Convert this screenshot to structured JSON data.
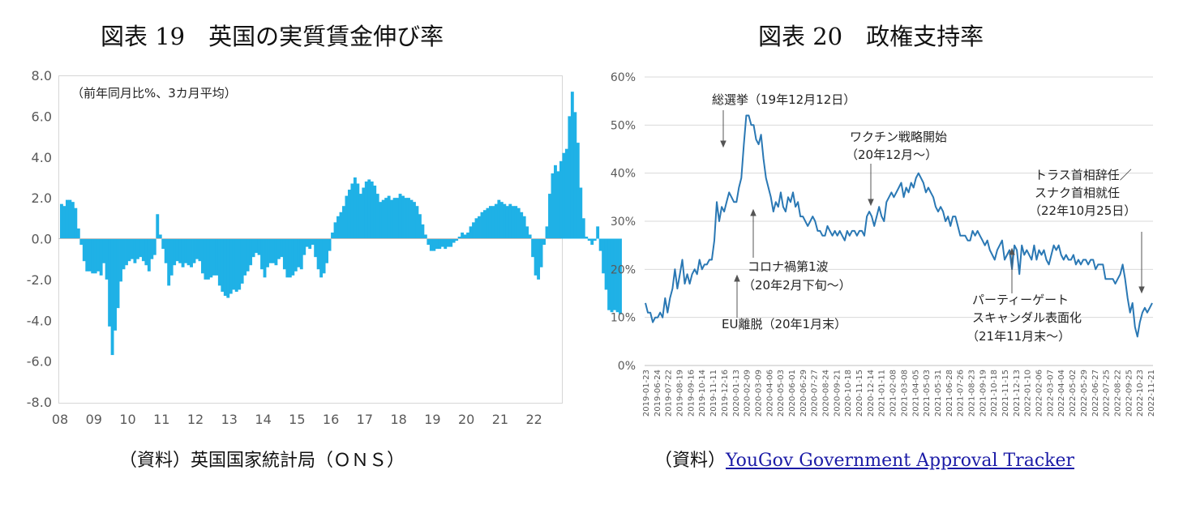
{
  "left_figure": {
    "title": "図表 19　英国の実質賃金伸び率",
    "note": "（前年同月比%、3カ月平均）",
    "source_label": "（資料）英国国家統計局（ＯＮＳ）"
  },
  "right_figure": {
    "title": "図表 20　政権支持率",
    "source_prefix": "（資料）",
    "source_link": "YouGov Government Approval Tracker"
  },
  "colors": {
    "bar": "#1fb1e6",
    "line": "#2a78b4",
    "grid": "#d9d9d9",
    "axis_text": "#595959",
    "link": "#1a1aa6"
  },
  "chart_data": [
    {
      "type": "bar",
      "x_tick_labels": [
        "08",
        "09",
        "10",
        "11",
        "12",
        "13",
        "14",
        "15",
        "16",
        "17",
        "18",
        "19",
        "20",
        "21",
        "22"
      ],
      "y_tick_labels": [
        "8.0",
        "6.0",
        "4.0",
        "2.0",
        "0.0",
        "-2.0",
        "-4.0",
        "-6.0",
        "-8.0"
      ],
      "ylim": [
        -8,
        8
      ],
      "x_start": 2008.0,
      "x_step_years": 0.08333,
      "grid": false,
      "values": [
        1.7,
        1.6,
        1.9,
        1.9,
        1.8,
        1.5,
        0.5,
        -0.3,
        -1.1,
        -1.6,
        -1.6,
        -1.7,
        -1.7,
        -1.6,
        -1.8,
        -1.2,
        -2.0,
        -4.3,
        -5.7,
        -4.5,
        -3.4,
        -2.1,
        -1.5,
        -1.3,
        -1.1,
        -1.0,
        -1.2,
        -1.0,
        -0.9,
        -1.1,
        -1.3,
        -1.6,
        -1.0,
        -0.8,
        1.2,
        0.2,
        -0.5,
        -1.2,
        -2.3,
        -1.8,
        -1.3,
        -1.1,
        -1.2,
        -1.4,
        -1.2,
        -1.3,
        -1.4,
        -1.2,
        -1.0,
        -1.1,
        -1.7,
        -2.0,
        -2.0,
        -1.9,
        -1.8,
        -1.8,
        -2.3,
        -2.6,
        -2.8,
        -2.9,
        -2.7,
        -2.5,
        -2.6,
        -2.5,
        -2.2,
        -1.8,
        -1.6,
        -1.3,
        -0.9,
        -0.7,
        -0.8,
        -1.5,
        -1.9,
        -1.4,
        -1.2,
        -1.2,
        -1.3,
        -1.0,
        -0.9,
        -1.5,
        -1.9,
        -1.9,
        -1.8,
        -1.6,
        -1.4,
        -1.5,
        -0.8,
        -0.4,
        -0.5,
        -0.3,
        -0.9,
        -1.5,
        -1.9,
        -1.7,
        -1.2,
        -0.6,
        0.3,
        0.8,
        1.1,
        1.3,
        1.6,
        2.1,
        2.4,
        2.7,
        3.0,
        2.7,
        2.2,
        2.5,
        2.8,
        2.9,
        2.8,
        2.6,
        2.2,
        1.8,
        1.9,
        2.0,
        2.1,
        1.9,
        2.0,
        2.0,
        2.2,
        2.1,
        2.0,
        2.0,
        1.9,
        1.8,
        1.6,
        1.2,
        0.7,
        0.2,
        -0.3,
        -0.6,
        -0.6,
        -0.5,
        -0.5,
        -0.4,
        -0.5,
        -0.4,
        -0.4,
        -0.2,
        -0.1,
        0.1,
        0.3,
        0.2,
        0.3,
        0.6,
        0.8,
        1.0,
        1.1,
        1.3,
        1.4,
        1.5,
        1.6,
        1.6,
        1.7,
        1.9,
        1.8,
        1.7,
        1.6,
        1.7,
        1.6,
        1.6,
        1.5,
        1.3,
        1.1,
        0.6,
        0.2,
        -0.9,
        -1.8,
        -2.0,
        -1.4,
        -0.3,
        0.6,
        2.2,
        3.2,
        3.6,
        3.3,
        3.8,
        4.2,
        4.4,
        6.0,
        7.2,
        6.2,
        4.7,
        2.5,
        1.0,
        0.1,
        -0.1,
        -0.3,
        -0.1,
        0.6,
        -0.6,
        -1.7,
        -2.5,
        -3.5,
        -3.6,
        -3.5,
        -3.6,
        -3.7
      ]
    },
    {
      "type": "line",
      "x_tick_labels": [
        "2019-01-23",
        "2019-06-24",
        "2019-07-22",
        "2019-08-19",
        "2019-09-16",
        "2019-10-14",
        "2019-11-11",
        "2019-12-16",
        "2020-01-13",
        "2020-02-09",
        "2020-03-09",
        "2020-04-06",
        "2020-05-03",
        "2020-06-01",
        "2020-06-29",
        "2020-07-27",
        "2020-08-24",
        "2020-09-21",
        "2020-10-18",
        "2020-11-15",
        "2020-12-14",
        "2021-01-11",
        "2021-02-08",
        "2021-03-08",
        "2021-04-05",
        "2021-05-03",
        "2021-05-31",
        "2021-06-28",
        "2021-07-26",
        "2021-08-23",
        "2021-09-19",
        "2021-10-18",
        "2021-11-15",
        "2021-12-13",
        "2022-01-10",
        "2022-02-06",
        "2022-03-07",
        "2022-04-04",
        "2022-05-02",
        "2022-05-29",
        "2022-06-27",
        "2022-07-25",
        "2022-08-22",
        "2022-09-25",
        "2022-10-23",
        "2022-11-21"
      ],
      "y_tick_labels": [
        "60%",
        "50%",
        "40%",
        "30%",
        "20%",
        "10%",
        "0%"
      ],
      "ylim": [
        0,
        60
      ],
      "grid": true,
      "series": [
        {
          "values": [
            13,
            11,
            11,
            9,
            10,
            10,
            11,
            10,
            14,
            11,
            14,
            16,
            20,
            16,
            19,
            22,
            17,
            19,
            17,
            19,
            20,
            19,
            22,
            20,
            21,
            21,
            22,
            22,
            26,
            34,
            30,
            33,
            32,
            34,
            36,
            35,
            34,
            34,
            37,
            39,
            46,
            52,
            52,
            50,
            50,
            47,
            46,
            48,
            43,
            39,
            37,
            35,
            32,
            34,
            33,
            36,
            33,
            32,
            35,
            34,
            36,
            33,
            34,
            31,
            31,
            30,
            29,
            30,
            31,
            30,
            28,
            28,
            27,
            27,
            29,
            28,
            27,
            28,
            27,
            28,
            27,
            26,
            28,
            27,
            28,
            28,
            27,
            28,
            28,
            27,
            31,
            32,
            31,
            29,
            31,
            33,
            31,
            30,
            34,
            35,
            36,
            35,
            36,
            37,
            38,
            35,
            37,
            36,
            38,
            37,
            39,
            40,
            39,
            38,
            36,
            37,
            36,
            35,
            33,
            32,
            33,
            32,
            30,
            31,
            29,
            31,
            31,
            29,
            27,
            27,
            27,
            26,
            26,
            28,
            27,
            28,
            27,
            26,
            25,
            26,
            24,
            23,
            22,
            24,
            25,
            26,
            22,
            23,
            24,
            20,
            25,
            24,
            19,
            25,
            23,
            24,
            23,
            22,
            25,
            22,
            24,
            23,
            24,
            22,
            21,
            23,
            25,
            24,
            25,
            23,
            22,
            23,
            22,
            22,
            23,
            21,
            22,
            21,
            22,
            22,
            21,
            22,
            22,
            20,
            21,
            21,
            21,
            18,
            18,
            18,
            18,
            17,
            18,
            19,
            21,
            18,
            14,
            11,
            13,
            8,
            6,
            9,
            11,
            12,
            11,
            12,
            13
          ]
        }
      ],
      "annotations": [
        "総選挙（19年12月12日）",
        "ワクチン戦略開始",
        "（20年12月～）",
        "トラス首相辞任／",
        "スナク首相就任",
        "（22年10月25日）",
        "コロナ禍第1波",
        "（20年2月下旬～）",
        "EU離脱（20年1月末）",
        "パーティーゲート",
        "スキャンダル表面化",
        "（21年11月末～）"
      ]
    }
  ]
}
